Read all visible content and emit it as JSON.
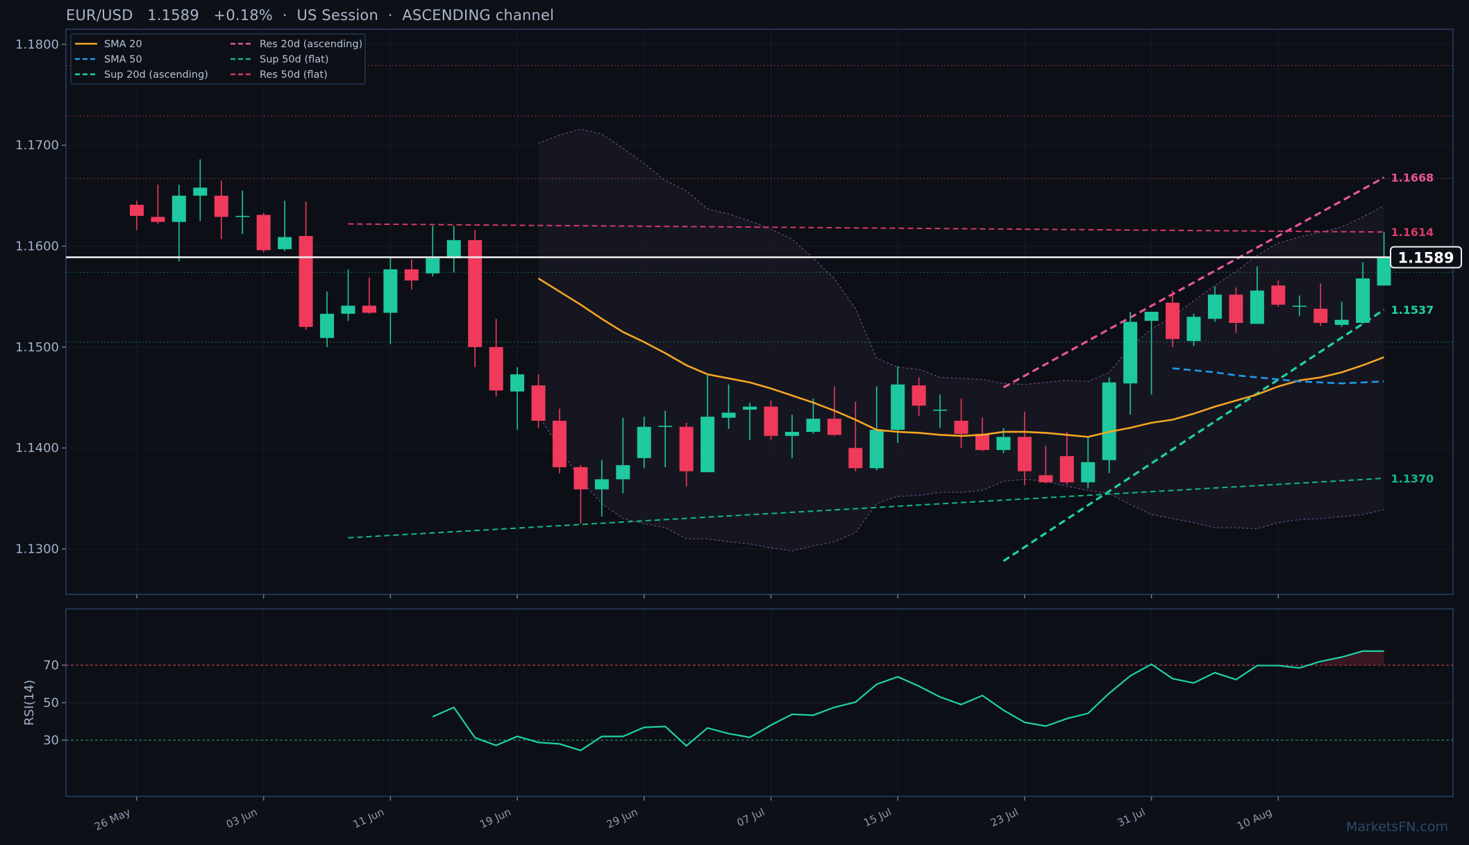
{
  "header": {
    "symbol": "EUR/USD",
    "price": "1.1589",
    "change": "+0.18%",
    "session": "US Session",
    "channel": "ASCENDING channel"
  },
  "watermark": "MarketsFN.com",
  "chart_data": [
    {
      "type": "candlestick",
      "ylim": [
        1.1255,
        1.1815
      ],
      "y_ticks": [
        1.13,
        1.14,
        1.15,
        1.16,
        1.17,
        1.18
      ],
      "x_ticks": [
        "26 May",
        "03 Jun",
        "11 Jun",
        "19 Jun",
        "29 Jun",
        "07 Jul",
        "15 Jul",
        "23 Jul",
        "31 Jul",
        "10 Aug"
      ],
      "x_tick_index": [
        0,
        6,
        12,
        18,
        24,
        30,
        36,
        42,
        48,
        54
      ],
      "last_price_label": "1.1589",
      "candles": [
        {
          "o": 1.1641,
          "h": 1.1645,
          "l": 1.1616,
          "c": 1.163
        },
        {
          "o": 1.1629,
          "h": 1.1661,
          "l": 1.1622,
          "c": 1.1624
        },
        {
          "o": 1.1624,
          "h": 1.1661,
          "l": 1.1585,
          "c": 1.165
        },
        {
          "o": 1.165,
          "h": 1.1686,
          "l": 1.1625,
          "c": 1.1658
        },
        {
          "o": 1.165,
          "h": 1.1665,
          "l": 1.1607,
          "c": 1.1629
        },
        {
          "o": 1.163,
          "h": 1.1655,
          "l": 1.1612,
          "c": 1.163
        },
        {
          "o": 1.1631,
          "h": 1.1633,
          "l": 1.1594,
          "c": 1.1596
        },
        {
          "o": 1.1597,
          "h": 1.1645,
          "l": 1.1595,
          "c": 1.1609
        },
        {
          "o": 1.161,
          "h": 1.1644,
          "l": 1.1517,
          "c": 1.152
        },
        {
          "o": 1.1509,
          "h": 1.1555,
          "l": 1.15,
          "c": 1.1533
        },
        {
          "o": 1.1533,
          "h": 1.1577,
          "l": 1.1526,
          "c": 1.1541
        },
        {
          "o": 1.1541,
          "h": 1.1569,
          "l": 1.1533,
          "c": 1.1534
        },
        {
          "o": 1.1534,
          "h": 1.1588,
          "l": 1.1503,
          "c": 1.1577
        },
        {
          "o": 1.1577,
          "h": 1.1587,
          "l": 1.1557,
          "c": 1.1566
        },
        {
          "o": 1.1573,
          "h": 1.162,
          "l": 1.157,
          "c": 1.1588
        },
        {
          "o": 1.1588,
          "h": 1.162,
          "l": 1.1574,
          "c": 1.1606
        },
        {
          "o": 1.1606,
          "h": 1.1616,
          "l": 1.148,
          "c": 1.15
        },
        {
          "o": 1.15,
          "h": 1.1528,
          "l": 1.1451,
          "c": 1.1457
        },
        {
          "o": 1.1456,
          "h": 1.148,
          "l": 1.1418,
          "c": 1.1473
        },
        {
          "o": 1.1462,
          "h": 1.1473,
          "l": 1.142,
          "c": 1.1427
        },
        {
          "o": 1.1427,
          "h": 1.1439,
          "l": 1.1375,
          "c": 1.1381
        },
        {
          "o": 1.1381,
          "h": 1.1383,
          "l": 1.1325,
          "c": 1.1359
        },
        {
          "o": 1.1359,
          "h": 1.1388,
          "l": 1.1332,
          "c": 1.1369
        },
        {
          "o": 1.1369,
          "h": 1.143,
          "l": 1.1355,
          "c": 1.1383
        },
        {
          "o": 1.139,
          "h": 1.1431,
          "l": 1.138,
          "c": 1.1421
        },
        {
          "o": 1.1421,
          "h": 1.1437,
          "l": 1.1381,
          "c": 1.1422
        },
        {
          "o": 1.1421,
          "h": 1.1425,
          "l": 1.1362,
          "c": 1.1377
        },
        {
          "o": 1.1376,
          "h": 1.1472,
          "l": 1.1376,
          "c": 1.1431
        },
        {
          "o": 1.143,
          "h": 1.1463,
          "l": 1.1419,
          "c": 1.1435
        },
        {
          "o": 1.1438,
          "h": 1.1445,
          "l": 1.1408,
          "c": 1.1441
        },
        {
          "o": 1.1441,
          "h": 1.1447,
          "l": 1.1408,
          "c": 1.1412
        },
        {
          "o": 1.1412,
          "h": 1.1433,
          "l": 1.139,
          "c": 1.1416
        },
        {
          "o": 1.1416,
          "h": 1.1449,
          "l": 1.1414,
          "c": 1.1429
        },
        {
          "o": 1.1429,
          "h": 1.1461,
          "l": 1.1412,
          "c": 1.1413
        },
        {
          "o": 1.14,
          "h": 1.1446,
          "l": 1.1377,
          "c": 1.138
        },
        {
          "o": 1.138,
          "h": 1.1461,
          "l": 1.1378,
          "c": 1.1418
        },
        {
          "o": 1.1418,
          "h": 1.1481,
          "l": 1.1405,
          "c": 1.1463
        },
        {
          "o": 1.1462,
          "h": 1.147,
          "l": 1.1432,
          "c": 1.1442
        },
        {
          "o": 1.1438,
          "h": 1.1453,
          "l": 1.142,
          "c": 1.1438
        },
        {
          "o": 1.1427,
          "h": 1.1449,
          "l": 1.14,
          "c": 1.1414
        },
        {
          "o": 1.1414,
          "h": 1.143,
          "l": 1.1397,
          "c": 1.1398
        },
        {
          "o": 1.1398,
          "h": 1.142,
          "l": 1.1395,
          "c": 1.1411
        },
        {
          "o": 1.1411,
          "h": 1.1436,
          "l": 1.1363,
          "c": 1.1377
        },
        {
          "o": 1.1373,
          "h": 1.1402,
          "l": 1.1365,
          "c": 1.1366
        },
        {
          "o": 1.1392,
          "h": 1.1416,
          "l": 1.1364,
          "c": 1.1366
        },
        {
          "o": 1.1366,
          "h": 1.1411,
          "l": 1.136,
          "c": 1.1386
        },
        {
          "o": 1.1388,
          "h": 1.147,
          "l": 1.1375,
          "c": 1.1465
        },
        {
          "o": 1.1464,
          "h": 1.1535,
          "l": 1.1433,
          "c": 1.1525
        },
        {
          "o": 1.1526,
          "h": 1.1535,
          "l": 1.1453,
          "c": 1.1535
        },
        {
          "o": 1.1544,
          "h": 1.1556,
          "l": 1.15,
          "c": 1.1508
        },
        {
          "o": 1.1506,
          "h": 1.1533,
          "l": 1.1501,
          "c": 1.153
        },
        {
          "o": 1.1528,
          "h": 1.156,
          "l": 1.1525,
          "c": 1.1552
        },
        {
          "o": 1.1552,
          "h": 1.1559,
          "l": 1.1514,
          "c": 1.1524
        },
        {
          "o": 1.1523,
          "h": 1.158,
          "l": 1.1523,
          "c": 1.1556
        },
        {
          "o": 1.1561,
          "h": 1.1566,
          "l": 1.154,
          "c": 1.1542
        },
        {
          "o": 1.1541,
          "h": 1.1551,
          "l": 1.1531,
          "c": 1.1541
        },
        {
          "o": 1.1538,
          "h": 1.1563,
          "l": 1.1521,
          "c": 1.1524
        },
        {
          "o": 1.1522,
          "h": 1.1545,
          "l": 1.152,
          "c": 1.1527
        },
        {
          "o": 1.1524,
          "h": 1.1584,
          "l": 1.1523,
          "c": 1.1568
        },
        {
          "o": 1.1561,
          "h": 1.1614,
          "l": 1.1561,
          "c": 1.1589
        }
      ],
      "sma20": {
        "start_index": 19,
        "values": [
          1.1568,
          1.1555,
          1.1542,
          1.1528,
          1.1515,
          1.1505,
          1.1494,
          1.1482,
          1.1473,
          1.1469,
          1.1465,
          1.1459,
          1.1452,
          1.1445,
          1.1437,
          1.1428,
          1.1418,
          1.1416,
          1.1415,
          1.1413,
          1.1412,
          1.1413,
          1.1416,
          1.1416,
          1.1415,
          1.1413,
          1.1411,
          1.1416,
          1.142,
          1.1425,
          1.1428,
          1.1434,
          1.1441,
          1.1447,
          1.1453,
          1.1461,
          1.1467,
          1.147,
          1.1475,
          1.1482,
          1.149
        ]
      },
      "sma50": {
        "start_index": 49,
        "values": [
          1.1479,
          1.1477,
          1.1475,
          1.1472,
          1.147,
          1.1468,
          1.1466,
          1.1465,
          1.1464,
          1.1465,
          1.1466
        ]
      },
      "bollinger": {
        "start_index": 19,
        "upper": [
          1.1702,
          1.171,
          1.1716,
          1.1711,
          1.1697,
          1.1682,
          1.1665,
          1.1655,
          1.1637,
          1.1632,
          1.1625,
          1.1617,
          1.1607,
          1.1588,
          1.1568,
          1.1538,
          1.1489,
          1.148,
          1.1478,
          1.147,
          1.1469,
          1.1468,
          1.1464,
          1.1463,
          1.1465,
          1.1467,
          1.1466,
          1.1475,
          1.15,
          1.1518,
          1.153,
          1.1546,
          1.1561,
          1.1575,
          1.1591,
          1.1603,
          1.1609,
          1.1614,
          1.1619,
          1.1629,
          1.164
        ],
        "lower": [
          1.1432,
          1.14,
          1.1368,
          1.1345,
          1.133,
          1.1325,
          1.1321,
          1.131,
          1.131,
          1.1307,
          1.1305,
          1.1301,
          1.1298,
          1.1303,
          1.1307,
          1.1316,
          1.1345,
          1.1352,
          1.1353,
          1.1356,
          1.1356,
          1.1358,
          1.1367,
          1.1369,
          1.1367,
          1.1362,
          1.1358,
          1.1355,
          1.1344,
          1.1334,
          1.133,
          1.1326,
          1.1321,
          1.1321,
          1.132,
          1.1326,
          1.1329,
          1.133,
          1.1332,
          1.1334,
          1.1339
        ]
      },
      "trend_lines": [
        {
          "name": "Res 20d (ascending)",
          "from": [
            41,
            1.146
          ],
          "to": [
            59,
            1.1668
          ],
          "label": "1.1668",
          "color": "#e8559a"
        },
        {
          "name": "Sup 20d (ascending)",
          "from": [
            41,
            1.1288
          ],
          "to": [
            59,
            1.1537
          ],
          "label": "1.1537",
          "color": "#1ed3a5"
        },
        {
          "name": "Res 50d (flat)",
          "from": [
            10,
            1.1622
          ],
          "to": [
            59,
            1.1614
          ],
          "label": "1.1614",
          "color": "#d63a67"
        },
        {
          "name": "Sup 50d (flat)",
          "from": [
            10,
            1.1311
          ],
          "to": [
            59,
            1.137
          ],
          "label": "1.1370",
          "color": "#12b986"
        }
      ],
      "h_levels": [
        {
          "y": 1.1779,
          "color": "#b3424e"
        },
        {
          "y": 1.1729,
          "color": "#b3424e"
        },
        {
          "y": 1.1667,
          "color": "#b3424e"
        },
        {
          "y": 1.1574,
          "color": "#1f8a5e"
        },
        {
          "y": 1.1505,
          "color": "#1f8a5e"
        }
      ],
      "legend": {
        "placement": "top-left",
        "entries": [
          {
            "label": "SMA 20",
            "color": "#f5a623",
            "dash": "solid"
          },
          {
            "label": "SMA 50",
            "color": "#1e9be8",
            "dash": "dash"
          },
          {
            "label": "Sup 20d (ascending)",
            "color": "#1ed3a5",
            "dash": "dash"
          },
          {
            "label": "Res 20d (ascending)",
            "color": "#e8559a",
            "dash": "dash"
          },
          {
            "label": "Sup 50d (flat)",
            "color": "#12b986",
            "dash": "dash"
          },
          {
            "label": "Res 50d (flat)",
            "color": "#d63a67",
            "dash": "dash"
          }
        ]
      },
      "colors": {
        "up": "#1ec9a0",
        "down": "#f03a5b",
        "price_line": "#f2f2f2"
      }
    },
    {
      "type": "line",
      "ylabel": "RSI(14)",
      "ylim": [
        0,
        100
      ],
      "y_ticks": [
        30,
        50,
        70
      ],
      "overbought": 70,
      "oversold": 30,
      "start_index": 14,
      "values": [
        42.5,
        47.5,
        31.3,
        27.2,
        32.0,
        28.8,
        28.0,
        24.5,
        32.0,
        32.0,
        36.8,
        37.3,
        27.0,
        36.5,
        33.5,
        31.5,
        38.0,
        43.8,
        43.3,
        47.5,
        50.3,
        59.8,
        63.8,
        58.8,
        53.0,
        49.0,
        53.8,
        46.0,
        39.5,
        37.5,
        41.5,
        44.3,
        55.0,
        64.3,
        70.5,
        62.8,
        60.5,
        66.0,
        62.3,
        69.8,
        69.8,
        68.5,
        72.0,
        74.3,
        77.5,
        77.5
      ],
      "color": "#1ed3a5"
    }
  ]
}
